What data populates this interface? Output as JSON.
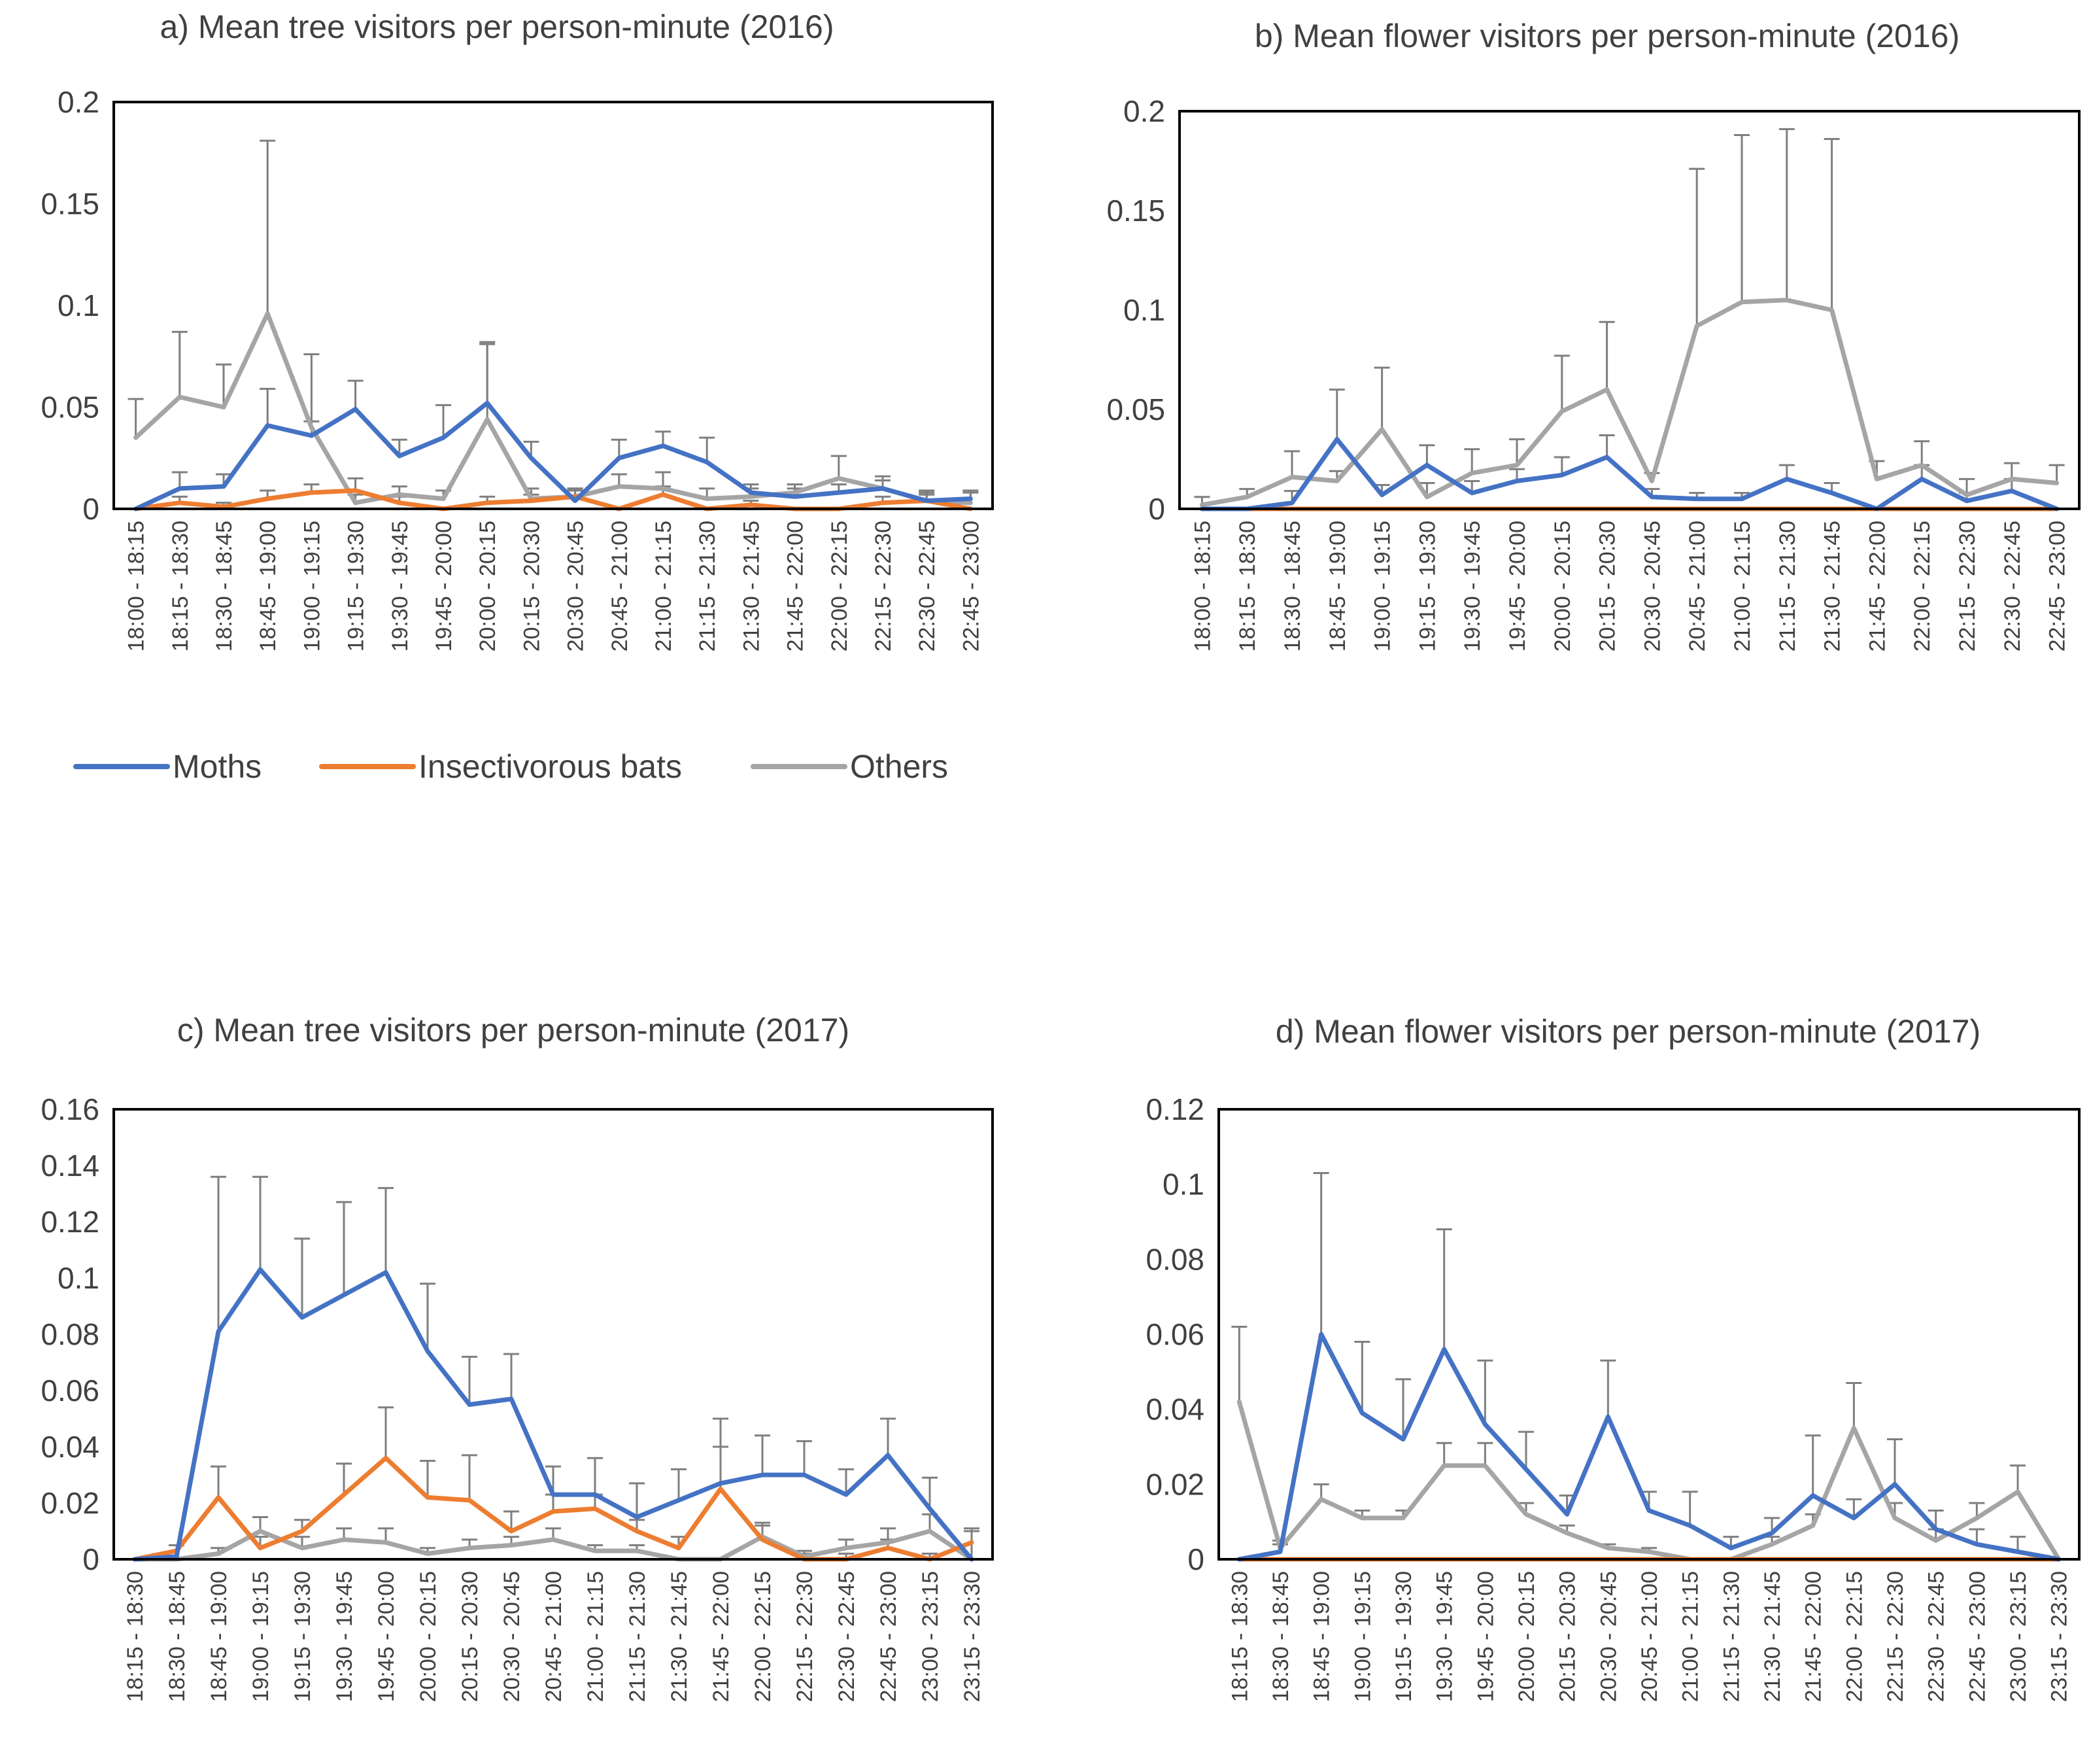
{
  "legend": {
    "items": [
      {
        "label": "Moths",
        "color": "#4472C4"
      },
      {
        "label": "Insectivorous bats",
        "color": "#ED7D31"
      },
      {
        "label": "Others",
        "color": "#A5A5A5"
      }
    ]
  },
  "chart_data": [
    {
      "id": "a",
      "type": "line",
      "title": "a) Mean tree visitors per person-minute (2016)",
      "categories": [
        "18:00 - 18:15",
        "18:15 - 18:30",
        "18:30 - 18:45",
        "18:45 - 19:00",
        "19:00 - 19:15",
        "19:15 - 19:30",
        "19:30 - 19:45",
        "19:45 - 20:00",
        "20:00 - 20:15",
        "20:15 - 20:30",
        "20:30 - 20:45",
        "20:45 - 21:00",
        "21:00 - 21:15",
        "21:15 - 21:30",
        "21:30 - 21:45",
        "21:45 - 22:00",
        "22:00 - 22:15",
        "22:15 - 22:30",
        "22:30 - 22:45",
        "22:45 - 23:00"
      ],
      "ylim": [
        0,
        0.2
      ],
      "yticks": [
        0,
        0.05,
        0.1,
        0.15,
        0.2
      ],
      "ytick_labels": [
        "0",
        "0.05",
        "0.1",
        "0.15",
        "0.2"
      ],
      "series": [
        {
          "name": "Moths",
          "color": "#4472C4",
          "values": [
            0,
            0.01,
            0.011,
            0.041,
            0.036,
            0.049,
            0.026,
            0.035,
            0.052,
            0.025,
            0.004,
            0.025,
            0.031,
            0.023,
            0.008,
            0.006,
            0.008,
            0.01,
            0.004,
            0.005
          ],
          "error": [
            0,
            0.008,
            0.006,
            0.018,
            0.007,
            0.014,
            0.008,
            0.016,
            0.029,
            0.008,
            0.005,
            0.009,
            0.007,
            0.012,
            0.004,
            0.004,
            0.004,
            0.004,
            0.004,
            0.004
          ]
        },
        {
          "name": "Insectivorous bats",
          "color": "#ED7D31",
          "values": [
            0,
            0.003,
            0.001,
            0.005,
            0.008,
            0.009,
            0.003,
            0,
            0.003,
            0.004,
            0.006,
            0,
            0.007,
            0,
            0.002,
            0,
            0,
            0.003,
            0.004,
            0
          ],
          "error": [
            0,
            0.003,
            0.002,
            0.004,
            0.004,
            0.006,
            0.003,
            0,
            0.003,
            0.003,
            0.004,
            0,
            0.004,
            0,
            0.002,
            0,
            0,
            0.003,
            0.003,
            0
          ]
        },
        {
          "name": "Others",
          "color": "#A5A5A5",
          "values": [
            0.035,
            0.055,
            0.05,
            0.096,
            0.04,
            0.003,
            0.007,
            0.005,
            0.044,
            0.005,
            0.006,
            0.011,
            0.01,
            0.005,
            0.006,
            0.008,
            0.015,
            0.01,
            0.004,
            0.003
          ],
          "error": [
            0.019,
            0.032,
            0.021,
            0.085,
            0.036,
            0.004,
            0.004,
            0.004,
            0.038,
            0.005,
            0.004,
            0.006,
            0.008,
            0.005,
            0.004,
            0.004,
            0.011,
            0.006,
            0.005,
            0.005
          ]
        }
      ]
    },
    {
      "id": "b",
      "type": "line",
      "title": "b) Mean flower visitors per person-minute (2016)",
      "categories": [
        "18:00 - 18:15",
        "18:15 - 18:30",
        "18:30 - 18:45",
        "18:45 - 19:00",
        "19:00 - 19:15",
        "19:15 - 19:30",
        "19:30 - 19:45",
        "19:45 - 20:00",
        "20:00 - 20:15",
        "20:15 - 20:30",
        "20:30 - 20:45",
        "20:45 - 21:00",
        "21:00 - 21:15",
        "21:15 - 21:30",
        "21:30 - 21:45",
        "21:45 - 22:00",
        "22:00 - 22:15",
        "22:15 - 22:30",
        "22:30 - 22:45",
        "22:45 - 23:00"
      ],
      "ylim": [
        0,
        0.2
      ],
      "yticks": [
        0,
        0.05,
        0.1,
        0.15,
        0.2
      ],
      "ytick_labels": [
        "0",
        "0.05",
        "0.1",
        "0.15",
        "0.2"
      ],
      "series": [
        {
          "name": "Moths",
          "color": "#4472C4",
          "values": [
            0,
            0,
            0.003,
            0.035,
            0.007,
            0.022,
            0.008,
            0.014,
            0.017,
            0.026,
            0.006,
            0.005,
            0.005,
            0.015,
            0.008,
            0,
            0.015,
            0.004,
            0.009,
            0
          ],
          "error": [
            0,
            0,
            0.006,
            0.025,
            0.005,
            0.01,
            0.006,
            0.006,
            0.009,
            0.011,
            0.004,
            0.003,
            0.003,
            0.007,
            0.005,
            0,
            0.007,
            0.004,
            0.006,
            0
          ]
        },
        {
          "name": "Insectivorous bats",
          "color": "#ED7D31",
          "values": [
            0,
            0,
            0,
            0,
            0,
            0,
            0,
            0,
            0,
            0,
            0,
            0,
            0,
            0,
            0,
            0,
            0,
            0,
            0,
            0
          ],
          "error": [
            0,
            0,
            0,
            0,
            0,
            0,
            0,
            0,
            0,
            0,
            0,
            0,
            0,
            0,
            0,
            0,
            0,
            0,
            0,
            0
          ]
        },
        {
          "name": "Others",
          "color": "#A5A5A5",
          "values": [
            0.002,
            0.006,
            0.016,
            0.014,
            0.04,
            0.006,
            0.018,
            0.022,
            0.049,
            0.06,
            0.014,
            0.092,
            0.104,
            0.105,
            0.1,
            0.015,
            0.022,
            0.007,
            0.015,
            0.013
          ],
          "error": [
            0.004,
            0.004,
            0.013,
            0.005,
            0.031,
            0.007,
            0.012,
            0.013,
            0.028,
            0.034,
            0.004,
            0.079,
            0.084,
            0.086,
            0.086,
            0.009,
            0.012,
            0.008,
            0.008,
            0.009
          ]
        }
      ]
    },
    {
      "id": "c",
      "type": "line",
      "title": "c) Mean tree visitors per person-minute (2017)",
      "categories": [
        "18:15 - 18:30",
        "18:30 - 18:45",
        "18:45 - 19:00",
        "19:00 - 19:15",
        "19:15 - 19:30",
        "19:30 - 19:45",
        "19:45 - 20:00",
        "20:00 - 20:15",
        "20:15 - 20:30",
        "20:30 - 20:45",
        "20:45 - 21:00",
        "21:00 - 21:15",
        "21:15 - 21:30",
        "21:30 - 21:45",
        "21:45 - 22:00",
        "22:00 - 22:15",
        "22:15 - 22:30",
        "22:30 - 22:45",
        "22:45 - 23:00",
        "23:00 - 23:15",
        "23:15 - 23:30"
      ],
      "ylim": [
        0,
        0.16
      ],
      "yticks": [
        0,
        0.02,
        0.04,
        0.06,
        0.08,
        0.1,
        0.12,
        0.14,
        0.16
      ],
      "ytick_labels": [
        "0",
        "0.02",
        "0.04",
        "0.06",
        "0.08",
        "0.1",
        "0.12",
        "0.14",
        "0.16"
      ],
      "series": [
        {
          "name": "Moths",
          "color": "#4472C4",
          "values": [
            0,
            0.001,
            0.081,
            0.103,
            0.086,
            0.094,
            0.102,
            0.074,
            0.055,
            0.057,
            0.023,
            0.023,
            0.015,
            0.021,
            0.027,
            0.03,
            0.03,
            0.023,
            0.037,
            0.018,
            0
          ],
          "error": [
            0,
            0.004,
            0.055,
            0.033,
            0.028,
            0.033,
            0.03,
            0.024,
            0.017,
            0.016,
            0.01,
            0.013,
            0.012,
            0.011,
            0.023,
            0.014,
            0.012,
            0.009,
            0.013,
            0.011,
            0.011
          ]
        },
        {
          "name": "Insectivorous bats",
          "color": "#ED7D31",
          "values": [
            0,
            0.003,
            0.022,
            0.004,
            0.01,
            0.023,
            0.036,
            0.022,
            0.021,
            0.01,
            0.017,
            0.018,
            0.01,
            0.004,
            0.025,
            0.007,
            0,
            0,
            0.004,
            0,
            0.006
          ],
          "error": [
            0,
            0.002,
            0.011,
            0.004,
            0.004,
            0.011,
            0.018,
            0.013,
            0.016,
            0.007,
            0.006,
            0.005,
            0.004,
            0.004,
            0.015,
            0.005,
            0.002,
            0.002,
            0.003,
            0.002,
            0.004
          ]
        },
        {
          "name": "Others",
          "color": "#A5A5A5",
          "values": [
            0,
            0,
            0.002,
            0.01,
            0.004,
            0.007,
            0.006,
            0.002,
            0.004,
            0.005,
            0.007,
            0.003,
            0.003,
            0,
            0,
            0.008,
            0.001,
            0.004,
            0.006,
            0.01,
            0
          ],
          "error": [
            0,
            0,
            0.002,
            0.005,
            0.004,
            0.004,
            0.005,
            0.002,
            0.003,
            0.003,
            0.004,
            0.002,
            0.002,
            0,
            0,
            0.005,
            0.002,
            0.003,
            0.005,
            0.006,
            0
          ]
        }
      ]
    },
    {
      "id": "d",
      "type": "line",
      "title": "d) Mean flower visitors per person-minute (2017)",
      "categories": [
        "18:15 - 18:30",
        "18:30 - 18:45",
        "18:45 - 19:00",
        "19:00 - 19:15",
        "19:15 - 19:30",
        "19:30 - 19:45",
        "19:45 - 20:00",
        "20:00 - 20:15",
        "20:15 - 20:30",
        "20:30 - 20:45",
        "20:45 - 21:00",
        "21:00 - 21:15",
        "21:15 - 21:30",
        "21:30 - 21:45",
        "21:45 - 22:00",
        "22:00 - 22:15",
        "22:15 - 22:30",
        "22:30 - 22:45",
        "22:45 - 23:00",
        "23:00 - 23:15",
        "23:15 - 23:30"
      ],
      "ylim": [
        0,
        0.12
      ],
      "yticks": [
        0,
        0.02,
        0.04,
        0.06,
        0.08,
        0.1,
        0.12
      ],
      "ytick_labels": [
        "0",
        "0.02",
        "0.04",
        "0.06",
        "0.08",
        "0.1",
        "0.12"
      ],
      "series": [
        {
          "name": "Moths",
          "color": "#4472C4",
          "values": [
            0,
            0.002,
            0.06,
            0.039,
            0.032,
            0.056,
            0.036,
            0.024,
            0.012,
            0.038,
            0.013,
            0.009,
            0.003,
            0.007,
            0.017,
            0.011,
            0.02,
            0.008,
            0.004,
            0.002,
            0
          ],
          "error": [
            0,
            0.002,
            0.043,
            0.019,
            0.016,
            0.032,
            0.017,
            0.01,
            0.005,
            0.015,
            0.005,
            0.009,
            0.003,
            0.004,
            0.016,
            0.005,
            0.012,
            0.005,
            0.004,
            0.004,
            0
          ]
        },
        {
          "name": "Insectivorous bats",
          "color": "#ED7D31",
          "values": [
            0,
            0,
            0,
            0,
            0,
            0,
            0,
            0,
            0,
            0,
            0,
            0,
            0,
            0,
            0,
            0,
            0,
            0,
            0,
            0,
            0
          ],
          "error": [
            0,
            0,
            0,
            0,
            0,
            0,
            0,
            0,
            0,
            0,
            0,
            0,
            0,
            0,
            0,
            0,
            0,
            0,
            0,
            0,
            0
          ]
        },
        {
          "name": "Others",
          "color": "#A5A5A5",
          "values": [
            0.042,
            0.003,
            0.016,
            0.011,
            0.011,
            0.025,
            0.025,
            0.012,
            0.007,
            0.003,
            0.002,
            0,
            0,
            0.004,
            0.009,
            0.035,
            0.011,
            0.005,
            0.011,
            0.018,
            0
          ],
          "error": [
            0.02,
            0.002,
            0.004,
            0.002,
            0.002,
            0.006,
            0.006,
            0.003,
            0.002,
            0.001,
            0.001,
            0,
            0,
            0.002,
            0.003,
            0.012,
            0.004,
            0.003,
            0.004,
            0.007,
            0
          ]
        }
      ]
    }
  ]
}
